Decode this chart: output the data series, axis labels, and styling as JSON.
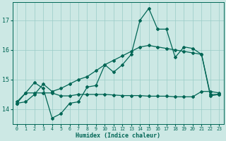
{
  "xlabel": "Humidex (Indice chaleur)",
  "bg_color": "#cce8e4",
  "grid_color": "#99ccc6",
  "line_color": "#006655",
  "xlim": [
    -0.5,
    23.5
  ],
  "ylim": [
    13.5,
    17.6
  ],
  "x": [
    0,
    1,
    2,
    3,
    4,
    5,
    6,
    7,
    8,
    9,
    10,
    11,
    12,
    13,
    14,
    15,
    16,
    17,
    18,
    19,
    20,
    21,
    22,
    23
  ],
  "line_flat": [
    14.25,
    14.55,
    14.55,
    14.55,
    14.55,
    14.45,
    14.45,
    14.5,
    14.5,
    14.5,
    14.5,
    14.48,
    14.46,
    14.46,
    14.46,
    14.44,
    14.44,
    14.44,
    14.42,
    14.42,
    14.42,
    14.6,
    14.6,
    14.55
  ],
  "line_zigzag": [
    14.2,
    14.55,
    14.9,
    14.7,
    13.7,
    13.85,
    14.2,
    14.25,
    14.75,
    14.8,
    15.5,
    15.25,
    15.5,
    15.85,
    17.0,
    17.4,
    16.7,
    16.7,
    15.75,
    16.1,
    16.05,
    15.85,
    14.45,
    14.5
  ],
  "line_trend": [
    14.2,
    14.25,
    14.5,
    14.85,
    14.6,
    14.7,
    14.85,
    15.0,
    15.1,
    15.3,
    15.5,
    15.65,
    15.8,
    15.95,
    16.1,
    16.15,
    16.1,
    16.05,
    16.0,
    15.95,
    15.9,
    15.85,
    14.5,
    14.5
  ],
  "yticks": [
    14,
    15,
    16,
    17
  ],
  "xticks": [
    0,
    1,
    2,
    3,
    4,
    5,
    6,
    7,
    8,
    9,
    10,
    11,
    12,
    13,
    14,
    15,
    16,
    17,
    18,
    19,
    20,
    21,
    22,
    23
  ],
  "marker": "D",
  "markersize": 2.0,
  "linewidth": 0.9
}
